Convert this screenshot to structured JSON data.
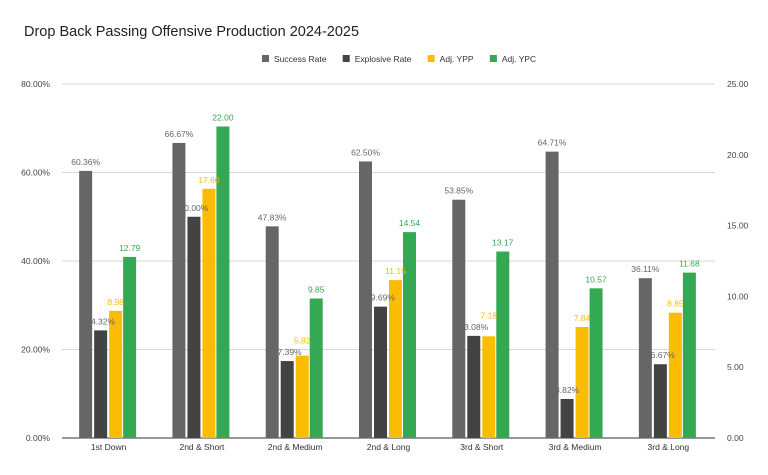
{
  "chart_data": {
    "type": "bar",
    "title": "Drop Back Passing Offensive Production 2024-2025",
    "categories": [
      "1st Down",
      "2nd & Short",
      "2nd & Medium",
      "2nd & Long",
      "3rd & Short",
      "3rd & Medium",
      "3rd & Long"
    ],
    "series": [
      {
        "name": "Success Rate",
        "axis": "left",
        "color": "#666666",
        "values": [
          60.36,
          66.67,
          47.83,
          62.5,
          53.85,
          64.71,
          36.11
        ],
        "labels": [
          "60.36%",
          "66.67%",
          "47.83%",
          "62.50%",
          "53.85%",
          "64.71%",
          "36.11%"
        ]
      },
      {
        "name": "Explosive Rate",
        "axis": "left",
        "color": "#434343",
        "values": [
          24.32,
          50.0,
          17.39,
          29.69,
          23.08,
          8.82,
          16.67
        ],
        "labels": [
          "24.32%",
          "50.00%",
          "17.39%",
          "29.69%",
          "23.08%",
          "8.82%",
          "16.67%"
        ]
      },
      {
        "name": "Adj. YPP",
        "axis": "right",
        "color": "#fbbc04",
        "values": [
          8.98,
          17.6,
          5.82,
          11.15,
          7.18,
          7.84,
          8.85
        ],
        "labels": [
          "8.98",
          "17.60",
          "5.82",
          "11.15",
          "7.18",
          "7.84",
          "8.85"
        ]
      },
      {
        "name": "Adj. YPC",
        "axis": "right",
        "color": "#34a853",
        "values": [
          12.79,
          22.0,
          9.85,
          14.54,
          13.17,
          10.57,
          11.68
        ],
        "labels": [
          "12.79",
          "22.00",
          "9.85",
          "14.54",
          "13.17",
          "10.57",
          "11.68"
        ]
      }
    ],
    "left_axis": {
      "range": [
        0,
        80
      ],
      "ticks": [
        "0.00%",
        "20.00%",
        "40.00%",
        "60.00%",
        "80.00%"
      ]
    },
    "right_axis": {
      "range": [
        0,
        25
      ],
      "ticks": [
        "0.00",
        "5.00",
        "10.00",
        "15.00",
        "20.00",
        "25.00"
      ]
    },
    "grid": true,
    "legend_position": "top"
  }
}
